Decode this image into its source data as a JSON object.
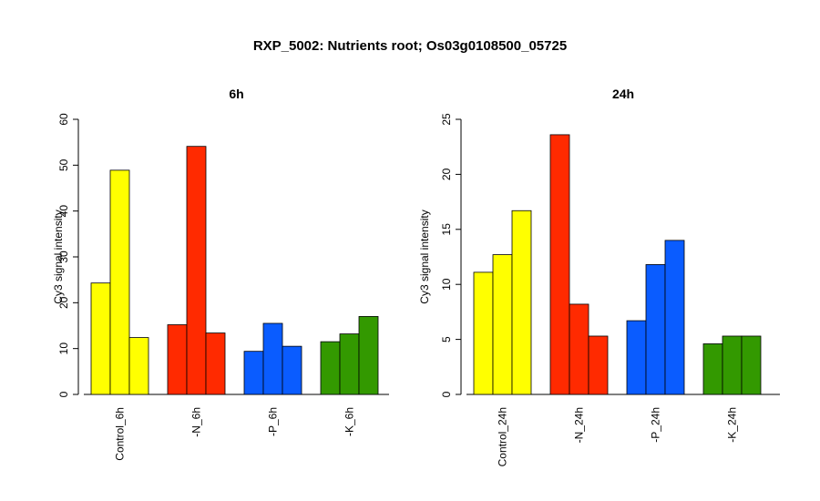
{
  "title": "RXP_5002: Nutrients root; Os03g0108500_05725",
  "colors": {
    "control": "#ffff00",
    "N": "#ff2a00",
    "P": "#0a5cff",
    "K": "#339900",
    "bar_border": "#000000"
  },
  "chart_data": [
    {
      "type": "bar",
      "title": "6h",
      "ylabel": "Cy3 signal intensity",
      "ylim": [
        0,
        60
      ],
      "yticks": [
        0,
        10,
        20,
        30,
        40,
        50,
        60
      ],
      "grid": false,
      "groups": [
        {
          "label": "Control_6h",
          "color": "#ffff00",
          "values": [
            24.3,
            48.9,
            12.4
          ]
        },
        {
          "label": "-N_6h",
          "color": "#ff2a00",
          "values": [
            15.2,
            54.1,
            13.4
          ]
        },
        {
          "label": "-P_6h",
          "color": "#0a5cff",
          "values": [
            9.4,
            15.5,
            10.5
          ]
        },
        {
          "label": "-K_6h",
          "color": "#339900",
          "values": [
            11.5,
            13.2,
            17.0
          ]
        }
      ]
    },
    {
      "type": "bar",
      "title": "24h",
      "ylabel": "Cy3 signal intensity",
      "ylim": [
        0,
        25
      ],
      "yticks": [
        0,
        5,
        10,
        15,
        20,
        25
      ],
      "grid": false,
      "groups": [
        {
          "label": "Control_24h",
          "color": "#ffff00",
          "values": [
            11.1,
            12.7,
            16.7
          ]
        },
        {
          "label": "-N_24h",
          "color": "#ff2a00",
          "values": [
            23.6,
            8.2,
            5.3
          ]
        },
        {
          "label": "-P_24h",
          "color": "#0a5cff",
          "values": [
            6.7,
            11.8,
            14.0
          ]
        },
        {
          "label": "-K_24h",
          "color": "#339900",
          "values": [
            4.6,
            5.3,
            5.3
          ]
        }
      ]
    }
  ]
}
